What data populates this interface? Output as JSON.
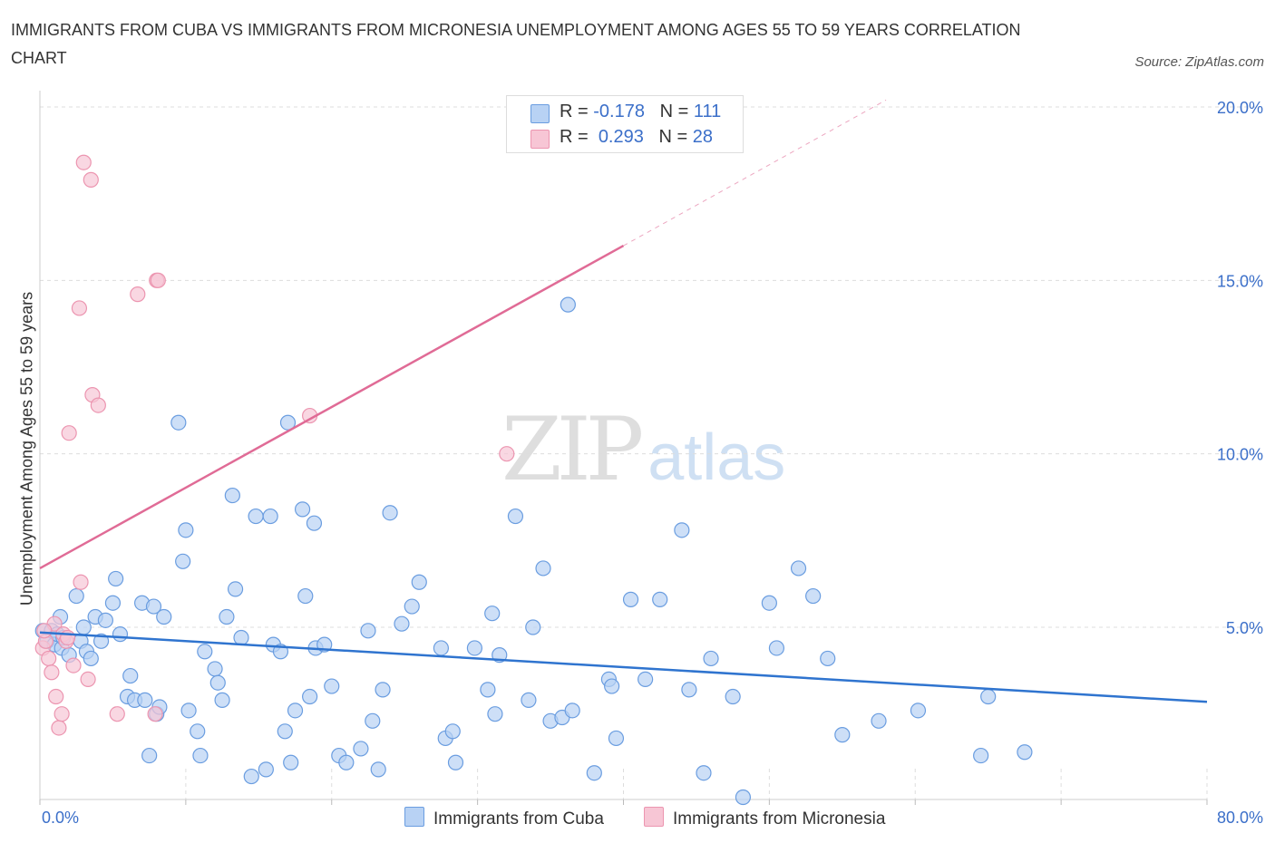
{
  "title": "IMMIGRANTS FROM CUBA VS IMMIGRANTS FROM MICRONESIA UNEMPLOYMENT AMONG AGES 55 TO 59 YEARS CORRELATION CHART",
  "source": "Source: ZipAtlas.com",
  "watermark": {
    "zip": "ZIP",
    "atlas": "atlas"
  },
  "legend": {
    "cuba": {
      "r_label": "R = ",
      "r_value": "-0.178",
      "n_label": "N = ",
      "n_value": "111"
    },
    "micronesia": {
      "r_label": "R = ",
      "r_value": "0.293",
      "n_label": "N = ",
      "n_value": "28"
    }
  },
  "bottom_legend": {
    "cuba": "Immigrants from Cuba",
    "micronesia": "Immigrants from Micronesia"
  },
  "colors": {
    "cuba_fill": "#b8d2f4",
    "cuba_stroke": "#6a9de0",
    "cuba_line": "#2f74cf",
    "micronesia_fill": "#f7c6d5",
    "micronesia_stroke": "#ec95b0",
    "micronesia_line": "#e06b96",
    "axis_text": "#3b6fc9",
    "grid": "#dddddd"
  },
  "chart_data": {
    "type": "scatter",
    "title": "IMMIGRANTS FROM CUBA VS IMMIGRANTS FROM MICRONESIA UNEMPLOYMENT AMONG AGES 55 TO 59 YEARS CORRELATION CHART",
    "xlabel": "",
    "ylabel": "Unemployment Among Ages 55 to 59 years",
    "xlim": [
      0,
      80
    ],
    "ylim": [
      0,
      20
    ],
    "x_tick_labels": [
      "0.0%",
      "80.0%"
    ],
    "y_ticks": [
      5,
      10,
      15,
      20
    ],
    "y_tick_labels": [
      "5.0%",
      "10.0%",
      "15.0%",
      "20.0%"
    ],
    "grid": true,
    "series": [
      {
        "name": "Immigrants from Cuba",
        "points": [
          [
            0.2,
            4.9
          ],
          [
            0.5,
            4.6
          ],
          [
            0.8,
            4.9
          ],
          [
            1.0,
            4.5
          ],
          [
            1.2,
            4.8
          ],
          [
            1.4,
            5.3
          ],
          [
            1.5,
            4.4
          ],
          [
            1.6,
            4.7
          ],
          [
            2.0,
            4.2
          ],
          [
            2.5,
            5.9
          ],
          [
            2.8,
            4.6
          ],
          [
            3.0,
            5.0
          ],
          [
            3.2,
            4.3
          ],
          [
            3.5,
            4.1
          ],
          [
            3.8,
            5.3
          ],
          [
            4.2,
            4.6
          ],
          [
            4.5,
            5.2
          ],
          [
            5.0,
            5.7
          ],
          [
            5.2,
            6.4
          ],
          [
            5.5,
            4.8
          ],
          [
            6.0,
            3.0
          ],
          [
            6.2,
            3.6
          ],
          [
            6.5,
            2.9
          ],
          [
            7.0,
            5.7
          ],
          [
            7.2,
            2.9
          ],
          [
            7.5,
            1.3
          ],
          [
            7.8,
            5.6
          ],
          [
            8.0,
            2.5
          ],
          [
            8.2,
            2.7
          ],
          [
            8.5,
            5.3
          ],
          [
            9.5,
            10.9
          ],
          [
            9.8,
            6.9
          ],
          [
            10.0,
            7.8
          ],
          [
            10.2,
            2.6
          ],
          [
            10.8,
            2.0
          ],
          [
            11.0,
            1.3
          ],
          [
            11.3,
            4.3
          ],
          [
            12.0,
            3.8
          ],
          [
            12.2,
            3.4
          ],
          [
            12.5,
            2.9
          ],
          [
            12.8,
            5.3
          ],
          [
            13.2,
            8.8
          ],
          [
            13.4,
            6.1
          ],
          [
            13.8,
            4.7
          ],
          [
            14.5,
            0.7
          ],
          [
            14.8,
            8.2
          ],
          [
            15.5,
            0.9
          ],
          [
            15.8,
            8.2
          ],
          [
            16.0,
            4.5
          ],
          [
            16.5,
            4.3
          ],
          [
            16.8,
            2.0
          ],
          [
            17.0,
            10.9
          ],
          [
            17.2,
            1.1
          ],
          [
            17.5,
            2.6
          ],
          [
            18.0,
            8.4
          ],
          [
            18.2,
            5.9
          ],
          [
            18.5,
            3.0
          ],
          [
            18.8,
            8.0
          ],
          [
            18.9,
            4.4
          ],
          [
            19.5,
            4.5
          ],
          [
            20.0,
            3.3
          ],
          [
            20.5,
            1.3
          ],
          [
            21.0,
            1.1
          ],
          [
            22.0,
            1.5
          ],
          [
            22.5,
            4.9
          ],
          [
            22.8,
            2.3
          ],
          [
            23.2,
            0.9
          ],
          [
            23.5,
            3.2
          ],
          [
            24.0,
            8.3
          ],
          [
            24.8,
            5.1
          ],
          [
            25.5,
            5.6
          ],
          [
            26.0,
            6.3
          ],
          [
            27.5,
            4.4
          ],
          [
            27.8,
            1.8
          ],
          [
            28.3,
            2.0
          ],
          [
            28.5,
            1.1
          ],
          [
            29.8,
            4.4
          ],
          [
            30.7,
            3.2
          ],
          [
            31.0,
            5.4
          ],
          [
            31.2,
            2.5
          ],
          [
            31.5,
            4.2
          ],
          [
            32.6,
            8.2
          ],
          [
            33.5,
            2.9
          ],
          [
            33.8,
            5.0
          ],
          [
            34.5,
            6.7
          ],
          [
            35.0,
            2.3
          ],
          [
            35.8,
            2.4
          ],
          [
            36.5,
            2.6
          ],
          [
            38.0,
            0.8
          ],
          [
            39.0,
            3.5
          ],
          [
            39.2,
            3.3
          ],
          [
            39.5,
            1.8
          ],
          [
            40.5,
            5.8
          ],
          [
            41.5,
            3.5
          ],
          [
            42.5,
            5.8
          ],
          [
            44.0,
            7.8
          ],
          [
            44.5,
            3.2
          ],
          [
            45.5,
            0.8
          ],
          [
            46.0,
            4.1
          ],
          [
            47.5,
            3.0
          ],
          [
            48.2,
            0.1
          ],
          [
            50.0,
            5.7
          ],
          [
            50.5,
            4.4
          ],
          [
            52.0,
            6.7
          ],
          [
            53.0,
            5.9
          ],
          [
            54.0,
            4.1
          ],
          [
            55.0,
            1.9
          ],
          [
            57.5,
            2.3
          ],
          [
            60.2,
            2.6
          ],
          [
            64.5,
            1.3
          ],
          [
            65.0,
            3.0
          ],
          [
            67.5,
            1.4
          ],
          [
            36.2,
            14.3
          ]
        ]
      },
      {
        "name": "Immigrants from Micronesia",
        "points": [
          [
            0.2,
            4.4
          ],
          [
            0.4,
            4.6
          ],
          [
            0.6,
            4.1
          ],
          [
            0.8,
            3.7
          ],
          [
            1.0,
            5.1
          ],
          [
            1.1,
            3.0
          ],
          [
            1.3,
            2.1
          ],
          [
            1.5,
            2.5
          ],
          [
            1.6,
            4.8
          ],
          [
            1.8,
            4.6
          ],
          [
            2.0,
            10.6
          ],
          [
            2.3,
            3.9
          ],
          [
            2.7,
            14.2
          ],
          [
            2.8,
            6.3
          ],
          [
            3.0,
            18.4
          ],
          [
            3.3,
            3.5
          ],
          [
            3.5,
            17.9
          ],
          [
            3.6,
            11.7
          ],
          [
            4.0,
            11.4
          ],
          [
            5.3,
            2.5
          ],
          [
            6.7,
            14.6
          ],
          [
            7.9,
            2.5
          ],
          [
            8.0,
            15.0
          ],
          [
            8.1,
            15.0
          ],
          [
            18.5,
            11.1
          ],
          [
            32.0,
            10.0
          ],
          [
            0.3,
            4.9
          ],
          [
            1.9,
            4.7
          ]
        ]
      }
    ],
    "trend_lines": [
      {
        "series": "Immigrants from Cuba",
        "x": [
          0,
          80
        ],
        "y": [
          4.85,
          2.85
        ],
        "style": "solid"
      },
      {
        "series": "Immigrants from Micronesia",
        "x": [
          0,
          40
        ],
        "y": [
          6.7,
          16.0
        ],
        "style": "solid"
      },
      {
        "series": "Immigrants from Micronesia",
        "x": [
          40,
          58
        ],
        "y": [
          16.0,
          20.2
        ],
        "style": "dashed"
      }
    ]
  }
}
